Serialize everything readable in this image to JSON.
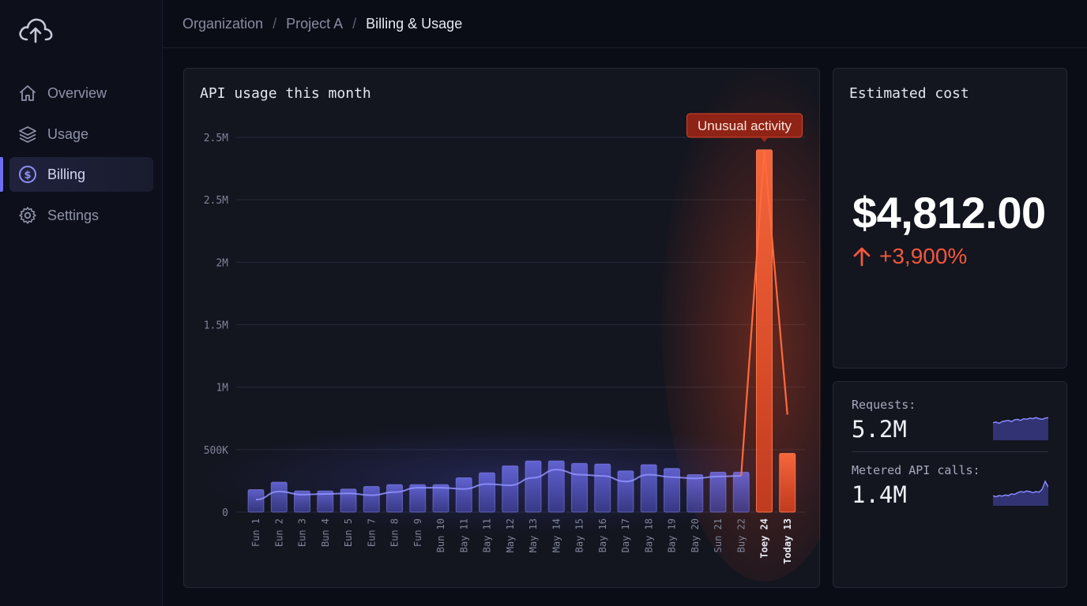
{
  "sidebar": {
    "logo_icon": "cloud-upload-icon",
    "items": [
      {
        "label": "Overview",
        "icon": "home-icon",
        "active": false
      },
      {
        "label": "Usage",
        "icon": "layers-icon",
        "active": false
      },
      {
        "label": "Billing",
        "icon": "dollar-circle-icon",
        "active": true
      },
      {
        "label": "Settings",
        "icon": "gear-icon",
        "active": false
      }
    ]
  },
  "breadcrumb": {
    "items": [
      "Organization",
      "Project A",
      "Billing & Usage"
    ],
    "separator": "/"
  },
  "usage_card": {
    "title": "API usage this month",
    "annotation": "Unusual activity"
  },
  "chart_data": {
    "type": "bar",
    "y_tick_labels": [
      "0",
      "500K",
      "1M",
      "1.5M",
      "2M",
      "2.5M",
      "2.5M"
    ],
    "categories": [
      "Fun 1",
      "Eun 2",
      "Eun 3",
      "Bun 4",
      "Eun 5",
      "Eun 7",
      "Eun 8",
      "Fun 9",
      "Bun 10",
      "Bay 11",
      "Bay 11",
      "May 12",
      "May 13",
      "May 14",
      "Bay 15",
      "Bay 16",
      "Day 17",
      "Bay 18",
      "Bay 19",
      "Bay 20",
      "Sun 21",
      "Buy 22",
      "Toey 24",
      "Today 13"
    ],
    "values": [
      180000,
      240000,
      170000,
      170000,
      185000,
      205000,
      220000,
      220000,
      220000,
      275000,
      315000,
      370000,
      410000,
      410000,
      390000,
      385000,
      330000,
      380000,
      350000,
      300000,
      320000,
      320000,
      2900000,
      470000
    ],
    "trend_values": [
      100000,
      165000,
      140000,
      145000,
      150000,
      135000,
      160000,
      195000,
      195000,
      185000,
      225000,
      215000,
      275000,
      340000,
      300000,
      290000,
      245000,
      300000,
      280000,
      270000,
      285000,
      290000,
      2900000,
      780000
    ],
    "highlighted_categories": [
      "Toey 24",
      "Today 13"
    ],
    "ylim": [
      0,
      3000000
    ],
    "grid": true,
    "colors": {
      "bar": "#6a6bf0",
      "trend": "#8f90ff",
      "anomaly": "#f2552e"
    }
  },
  "cost_card": {
    "title": "Estimated cost",
    "value": "$4,812.00",
    "change_icon": "arrow-up-icon",
    "change": "+3,900%",
    "change_color": "#f2583a"
  },
  "stats": [
    {
      "label": "Requests:",
      "value": "5.2M",
      "sparkline": [
        0.62,
        0.64,
        0.6,
        0.66,
        0.68,
        0.7,
        0.66,
        0.72,
        0.74,
        0.7,
        0.76,
        0.74,
        0.78,
        0.76,
        0.8,
        0.76,
        0.74,
        0.78,
        0.8
      ]
    },
    {
      "label": "Metered API calls:",
      "value": "1.4M",
      "sparkline": [
        0.35,
        0.32,
        0.36,
        0.34,
        0.38,
        0.36,
        0.42,
        0.4,
        0.46,
        0.5,
        0.48,
        0.52,
        0.5,
        0.46,
        0.5,
        0.48,
        0.58,
        0.86,
        0.66
      ]
    }
  ]
}
